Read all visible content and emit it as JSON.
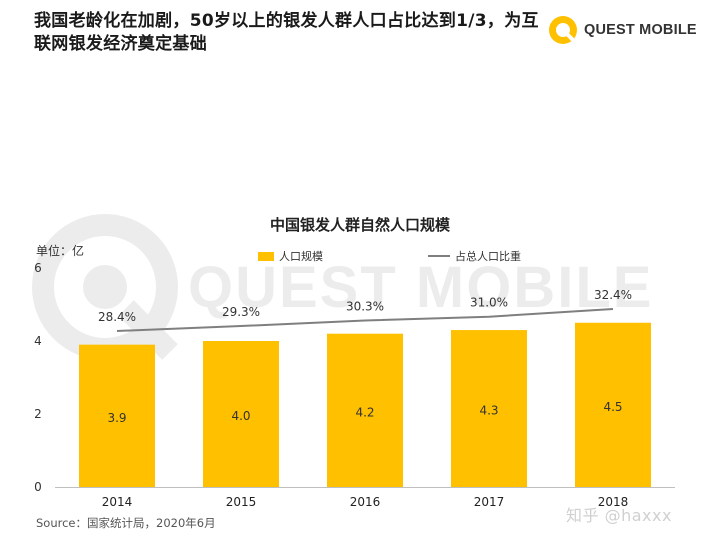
{
  "headline": "我国老龄化在加剧，50岁以上的银发人群人口占比达到1/3，为互联网银发经济奠定基础",
  "brand": {
    "name": "QUEST MOBILE",
    "watermark": "QUEST MOBILE",
    "accent": "#FFC000"
  },
  "chart_data": {
    "type": "bar",
    "title": "中国银发人群自然人口规模",
    "unit_label": "单位：亿",
    "categories": [
      "2014",
      "2015",
      "2016",
      "2017",
      "2018"
    ],
    "ylim": [
      0,
      6
    ],
    "yticks": [
      "0",
      "2",
      "4",
      "6"
    ],
    "series": [
      {
        "name": "人口规模",
        "type": "bar",
        "color": "#FFC000",
        "values": [
          3.9,
          4.0,
          4.2,
          4.3,
          4.5
        ],
        "labels": [
          "3.9",
          "4.0",
          "4.2",
          "4.3",
          "4.5"
        ]
      },
      {
        "name": "占总人口比重",
        "type": "line",
        "color": "#7f7f7f",
        "values": [
          28.4,
          29.3,
          30.3,
          31.0,
          32.4
        ],
        "labels": [
          "28.4%",
          "29.3%",
          "30.3%",
          "31.0%",
          "32.4%"
        ]
      }
    ],
    "legend_position": "top-center",
    "grid": false
  },
  "source": "Source：国家统计局，2020年6月",
  "credit": "知乎 @haxxx"
}
